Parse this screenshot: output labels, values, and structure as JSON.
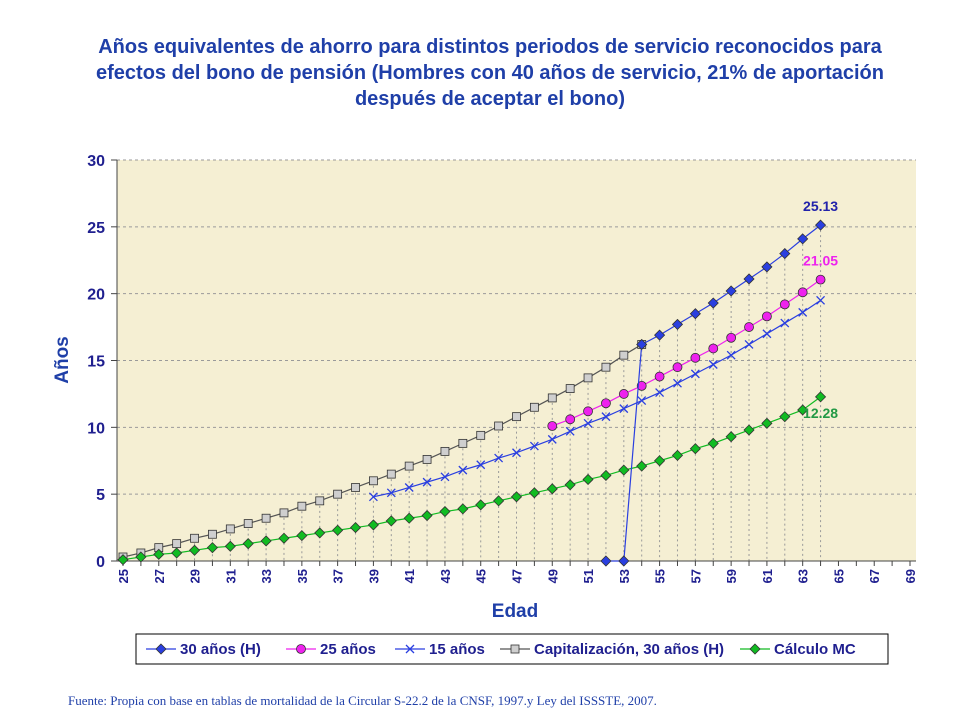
{
  "title": "Años equivalentes de ahorro para distintos periodos de servicio reconocidos para efectos del bono de pensión (Hombres con 40 años de servicio, 21% de aportación después de aceptar el bono)",
  "source": "Fuente: Propia con base en tablas de mortalidad de la Circular S-22.2 de la CNSF, 1997.y Ley del ISSSTE, 2007.",
  "chart_data": {
    "type": "line",
    "title": "Años equivalentes de ahorro para distintos periodos de servicio reconocidos para efectos del bono de pensión (Hombres con 40 años de servicio, 21% de aportación después de aceptar el bono)",
    "xlabel": "Edad",
    "ylabel": "Años",
    "xlim": [
      25,
      69
    ],
    "ylim": [
      0,
      30
    ],
    "yticks": [
      0,
      5,
      10,
      15,
      20,
      25,
      30
    ],
    "xticks": [
      25,
      27,
      29,
      31,
      33,
      35,
      37,
      39,
      41,
      43,
      45,
      47,
      49,
      51,
      53,
      55,
      57,
      59,
      61,
      63,
      65,
      67,
      69
    ],
    "grid": true,
    "legend": "bottom",
    "colors": {
      "plot_bg": "#f5efd3",
      "s30": "#2a3fe0",
      "s25": "#ee22ee",
      "s15": "#2a3fe0",
      "cap": "#555555",
      "mc": "#11bb22",
      "ann25": "#2222aa",
      "ann21": "#ee22ee",
      "ann12": "#229944"
    },
    "series": [
      {
        "name": "30 años (H)",
        "marker": "diamond",
        "x": [
          52,
          53,
          54,
          55,
          56,
          57,
          58,
          59,
          60,
          61,
          62,
          63,
          64
        ],
        "values": [
          0,
          0,
          16.2,
          16.9,
          17.7,
          18.5,
          19.3,
          20.2,
          21.1,
          22.0,
          23.0,
          24.1,
          25.13
        ]
      },
      {
        "name": "25 años",
        "marker": "circle",
        "x": [
          49,
          50,
          51,
          52,
          53,
          54,
          55,
          56,
          57,
          58,
          59,
          60,
          61,
          62,
          63,
          64
        ],
        "values": [
          10.1,
          10.6,
          11.2,
          11.8,
          12.5,
          13.1,
          13.8,
          14.5,
          15.2,
          15.9,
          16.7,
          17.5,
          18.3,
          19.2,
          20.1,
          21.05
        ]
      },
      {
        "name": "15 años",
        "marker": "x",
        "x": [
          39,
          40,
          41,
          42,
          43,
          44,
          45,
          46,
          47,
          48,
          49,
          50,
          51,
          52,
          53,
          54,
          55,
          56,
          57,
          58,
          59,
          60,
          61,
          62,
          63,
          64
        ],
        "values": [
          4.8,
          5.1,
          5.5,
          5.9,
          6.3,
          6.8,
          7.2,
          7.7,
          8.1,
          8.6,
          9.1,
          9.7,
          10.3,
          10.8,
          11.4,
          12.0,
          12.6,
          13.3,
          14.0,
          14.7,
          15.4,
          16.2,
          17.0,
          17.8,
          18.6,
          19.5
        ]
      },
      {
        "name": "Capitalización, 30 años (H)",
        "marker": "square",
        "x": [
          25,
          26,
          27,
          28,
          29,
          30,
          31,
          32,
          33,
          34,
          35,
          36,
          37,
          38,
          39,
          40,
          41,
          42,
          43,
          44,
          45,
          46,
          47,
          48,
          49,
          50,
          51,
          52,
          53,
          54
        ],
        "values": [
          0.3,
          0.6,
          1.0,
          1.3,
          1.7,
          2.0,
          2.4,
          2.8,
          3.2,
          3.6,
          4.1,
          4.5,
          5.0,
          5.5,
          6.0,
          6.5,
          7.1,
          7.6,
          8.2,
          8.8,
          9.4,
          10.1,
          10.8,
          11.5,
          12.2,
          12.9,
          13.7,
          14.5,
          15.4,
          16.2
        ]
      },
      {
        "name": "Cálculo MC",
        "marker": "diamond",
        "x": [
          25,
          26,
          27,
          28,
          29,
          30,
          31,
          32,
          33,
          34,
          35,
          36,
          37,
          38,
          39,
          40,
          41,
          42,
          43,
          44,
          45,
          46,
          47,
          48,
          49,
          50,
          51,
          52,
          53,
          54,
          55,
          56,
          57,
          58,
          59,
          60,
          61,
          62,
          63,
          64
        ],
        "values": [
          0.1,
          0.3,
          0.5,
          0.6,
          0.8,
          1.0,
          1.1,
          1.3,
          1.5,
          1.7,
          1.9,
          2.1,
          2.3,
          2.5,
          2.7,
          3.0,
          3.2,
          3.4,
          3.7,
          3.9,
          4.2,
          4.5,
          4.8,
          5.1,
          5.4,
          5.7,
          6.1,
          6.4,
          6.8,
          7.1,
          7.5,
          7.9,
          8.4,
          8.8,
          9.3,
          9.8,
          10.3,
          10.8,
          11.3,
          12.28
        ]
      }
    ],
    "annotations": [
      {
        "text": "25.13",
        "x": 64,
        "y": 25.13,
        "color_key": "ann25"
      },
      {
        "text": "21.05",
        "x": 64,
        "y": 21.05,
        "color_key": "ann21"
      },
      {
        "text": "12.28",
        "x": 64,
        "y": 12.28,
        "color_key": "ann12"
      }
    ]
  }
}
